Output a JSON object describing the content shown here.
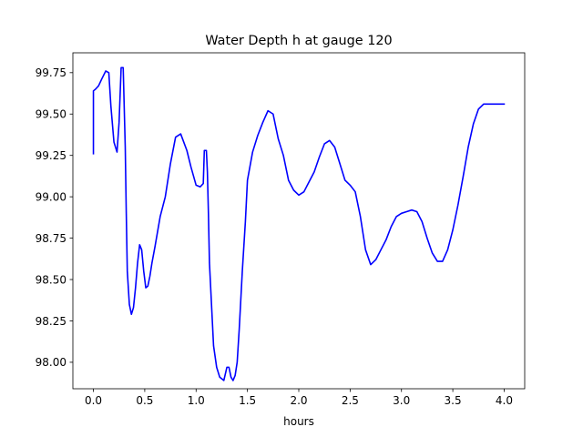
{
  "chart_data": {
    "type": "line",
    "title": "Water Depth h at gauge 120",
    "xlabel": "hours",
    "ylabel": "",
    "xlim": [
      -0.2,
      4.2
    ],
    "ylim": [
      97.84,
      99.87
    ],
    "xticks": [
      0.0,
      0.5,
      1.0,
      1.5,
      2.0,
      2.5,
      3.0,
      3.5,
      4.0
    ],
    "xtick_labels": [
      "0.0",
      "0.5",
      "1.0",
      "1.5",
      "2.0",
      "2.5",
      "3.0",
      "3.5",
      "4.0"
    ],
    "yticks": [
      98.0,
      98.25,
      98.5,
      98.75,
      99.0,
      99.25,
      99.5,
      99.75
    ],
    "ytick_labels": [
      "98.00",
      "98.25",
      "98.50",
      "98.75",
      "99.00",
      "99.25",
      "99.50",
      "99.75"
    ],
    "grid": false,
    "legend": "none",
    "series": [
      {
        "color": "#0000ff",
        "x": [
          0.0,
          0.0,
          0.02,
          0.05,
          0.08,
          0.12,
          0.15,
          0.17,
          0.2,
          0.23,
          0.25,
          0.27,
          0.29,
          0.31,
          0.32,
          0.33,
          0.35,
          0.37,
          0.39,
          0.41,
          0.43,
          0.45,
          0.47,
          0.49,
          0.51,
          0.53,
          0.55,
          0.57,
          0.6,
          0.65,
          0.7,
          0.75,
          0.8,
          0.85,
          0.88,
          0.91,
          0.95,
          1.0,
          1.04,
          1.07,
          1.08,
          1.1,
          1.11,
          1.12,
          1.13,
          1.15,
          1.17,
          1.2,
          1.23,
          1.27,
          1.3,
          1.32,
          1.34,
          1.36,
          1.38,
          1.4,
          1.42,
          1.45,
          1.48,
          1.5,
          1.55,
          1.6,
          1.65,
          1.7,
          1.75,
          1.77,
          1.8,
          1.85,
          1.9,
          1.95,
          2.0,
          2.05,
          2.1,
          2.15,
          2.2,
          2.25,
          2.3,
          2.35,
          2.4,
          2.45,
          2.5,
          2.55,
          2.6,
          2.65,
          2.7,
          2.75,
          2.8,
          2.85,
          2.9,
          2.95,
          3.0,
          3.05,
          3.1,
          3.15,
          3.2,
          3.25,
          3.3,
          3.35,
          3.4,
          3.45,
          3.5,
          3.55,
          3.6,
          3.65,
          3.7,
          3.75,
          3.8,
          3.85,
          3.9,
          3.95,
          4.0
        ],
        "y": [
          99.26,
          99.64,
          99.65,
          99.67,
          99.71,
          99.76,
          99.75,
          99.55,
          99.33,
          99.27,
          99.45,
          99.78,
          99.78,
          99.3,
          98.9,
          98.55,
          98.35,
          98.29,
          98.33,
          98.45,
          98.6,
          98.71,
          98.68,
          98.55,
          98.45,
          98.46,
          98.52,
          98.6,
          98.7,
          98.88,
          99.0,
          99.2,
          99.36,
          99.38,
          99.33,
          99.28,
          99.18,
          99.07,
          99.06,
          99.08,
          99.28,
          99.28,
          99.15,
          98.9,
          98.6,
          98.35,
          98.1,
          97.97,
          97.91,
          97.89,
          97.97,
          97.97,
          97.91,
          97.89,
          97.92,
          98.0,
          98.2,
          98.55,
          98.85,
          99.1,
          99.27,
          99.37,
          99.45,
          99.52,
          99.5,
          99.44,
          99.35,
          99.25,
          99.1,
          99.04,
          99.01,
          99.03,
          99.09,
          99.15,
          99.24,
          99.32,
          99.34,
          99.3,
          99.2,
          99.1,
          99.07,
          99.03,
          98.88,
          98.68,
          98.59,
          98.62,
          98.68,
          98.74,
          98.82,
          98.88,
          98.9,
          98.91,
          98.92,
          98.91,
          98.85,
          98.75,
          98.66,
          98.61,
          98.61,
          98.68,
          98.8,
          98.95,
          99.12,
          99.3,
          99.44,
          99.53,
          99.56,
          99.56,
          99.56,
          99.56,
          99.56
        ]
      }
    ]
  }
}
